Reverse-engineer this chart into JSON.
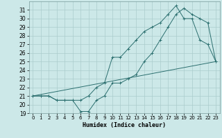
{
  "xlabel": "Humidex (Indice chaleur)",
  "background_color": "#cce8e8",
  "grid_color": "#aacccc",
  "line_color": "#2a6e6e",
  "xlim": [
    -0.5,
    23.5
  ],
  "ylim": [
    19,
    32
  ],
  "yticks": [
    19,
    20,
    21,
    22,
    23,
    24,
    25,
    26,
    27,
    28,
    29,
    30,
    31
  ],
  "xticks": [
    0,
    1,
    2,
    3,
    4,
    5,
    6,
    7,
    8,
    9,
    10,
    11,
    12,
    13,
    14,
    15,
    16,
    17,
    18,
    19,
    20,
    21,
    22,
    23
  ],
  "series1_x": [
    0,
    1,
    2,
    3,
    4,
    5,
    6,
    7,
    8,
    9,
    10,
    11,
    12,
    13,
    14,
    15,
    16,
    17,
    18,
    19,
    20,
    21,
    22,
    23
  ],
  "series1_y": [
    21.0,
    21.0,
    21.0,
    20.5,
    20.5,
    20.5,
    19.2,
    19.2,
    20.5,
    21.0,
    22.5,
    22.5,
    23.0,
    23.5,
    25.0,
    26.0,
    27.5,
    29.0,
    30.5,
    31.2,
    30.5,
    30.0,
    29.5,
    25.0
  ],
  "series2_x": [
    0,
    1,
    2,
    3,
    4,
    5,
    6,
    7,
    8,
    9,
    10,
    11,
    12,
    13,
    14,
    15,
    16,
    17,
    18,
    19,
    20,
    21,
    22,
    23
  ],
  "series2_y": [
    21.0,
    21.0,
    21.0,
    20.5,
    20.5,
    20.5,
    20.5,
    21.0,
    22.0,
    22.5,
    25.5,
    25.5,
    26.5,
    27.5,
    28.5,
    29.0,
    29.5,
    30.5,
    31.5,
    30.0,
    30.0,
    27.5,
    27.0,
    25.0
  ],
  "series3_x": [
    0,
    23
  ],
  "series3_y": [
    21.0,
    25.0
  ]
}
